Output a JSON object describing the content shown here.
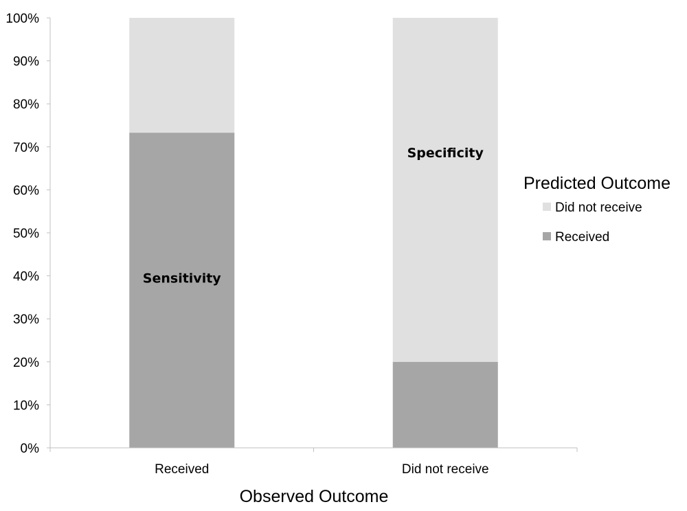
{
  "chart_data": {
    "type": "bar",
    "stacked": true,
    "normalized_percent": true,
    "categories": [
      "Received",
      "Did not receive"
    ],
    "series": [
      {
        "name": "Received",
        "values": [
          73.3,
          20.0
        ],
        "color": "#a6a6a6"
      },
      {
        "name": "Did not receive",
        "values": [
          26.7,
          80.0
        ],
        "color": "#e0e0e0"
      }
    ],
    "xlabel": "Observed Outcome",
    "ylabel": "",
    "ylim": [
      0,
      100
    ],
    "yticks": [
      "0%",
      "10%",
      "20%",
      "30%",
      "40%",
      "50%",
      "60%",
      "70%",
      "80%",
      "90%",
      "100%"
    ],
    "legend": {
      "title": "Predicted Outcome",
      "position": "right",
      "items": [
        "Did not receive",
        "Received"
      ]
    },
    "annotations": [
      {
        "text": "Sensitivity",
        "category": "Received",
        "y": 39.5
      },
      {
        "text": "Specificity",
        "category": "Did not receive",
        "y": 68.7
      }
    ],
    "grid": false
  }
}
